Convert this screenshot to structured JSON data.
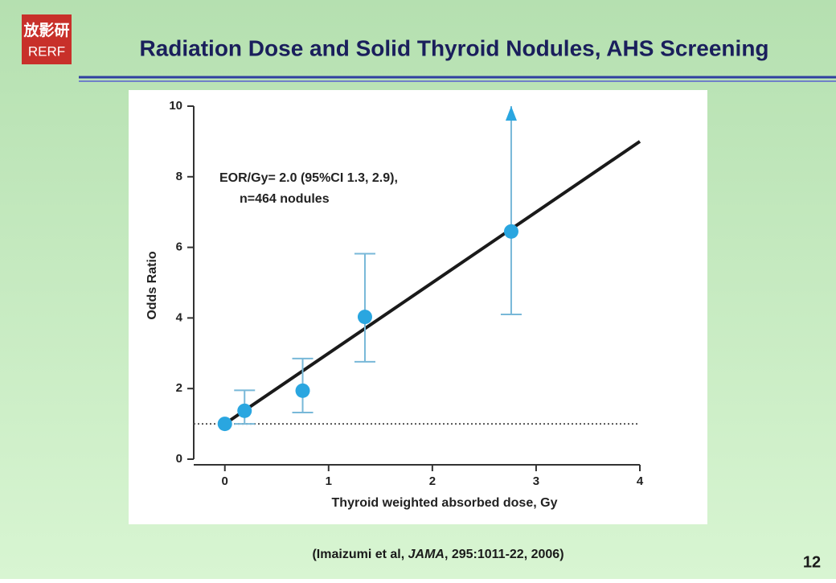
{
  "header": {
    "logo_top": "放影研",
    "logo_bottom": "RERF",
    "title": "Radiation Dose and Solid Thyroid Nodules, AHS Screening"
  },
  "chart_data": {
    "type": "scatter",
    "x_label": "Thyroid weighted absorbed dose, Gy",
    "y_label": "Odds Ratio",
    "annotation": [
      "EOR/Gy= 2.0 (95%CI 1.3, 2.9),",
      "n=464 nodules"
    ],
    "x": [
      0,
      0.19,
      0.75,
      1.35,
      2.76
    ],
    "values": [
      1.0,
      1.37,
      1.94,
      4.03,
      6.45
    ],
    "err_lower": [
      null,
      1.0,
      1.32,
      2.76,
      4.1
    ],
    "err_upper": [
      null,
      1.95,
      2.85,
      5.82,
      10
    ],
    "color": "#2aa6e0",
    "error_color": "#78b8d8",
    "fit": {
      "x": [
        0,
        4
      ],
      "y": [
        1,
        9
      ],
      "color": "#1a1a1a"
    },
    "reference_y": 1,
    "xlim": [
      -0.3,
      4
    ],
    "xticks": [
      0,
      1,
      2,
      3,
      4
    ],
    "ylim": [
      0,
      10
    ],
    "yticks": [
      0,
      2,
      4,
      6,
      8,
      10
    ]
  },
  "citation": {
    "prefix": "(Imaizumi et al, ",
    "journal": "JAMA",
    "suffix": ", 295:1011-22, 2006)"
  },
  "page_number": "12"
}
